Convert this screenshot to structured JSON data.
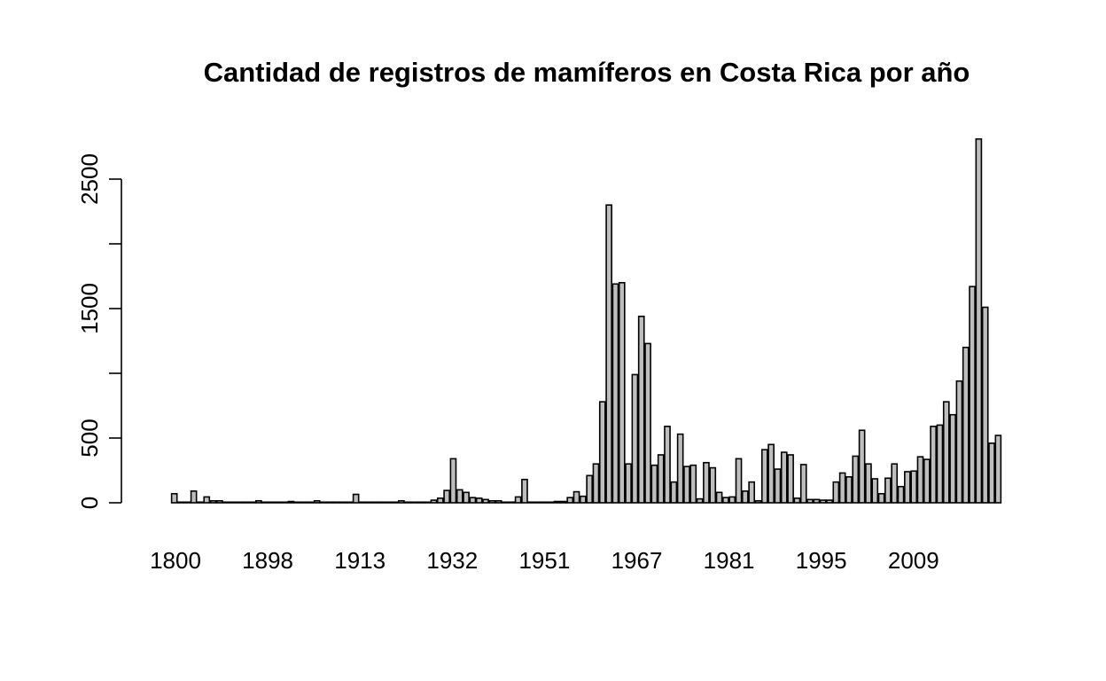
{
  "chart_data": {
    "type": "bar",
    "title": "Cantidad de registros de mamíferos en Costa Rica por año",
    "xlabel": "",
    "ylabel": "",
    "ylim": [
      0,
      2800
    ],
    "y_ticks": [
      0,
      500,
      1500,
      2500
    ],
    "x_tick_labels": [
      "1800",
      "1898",
      "1913",
      "1932",
      "1951",
      "1967",
      "1981",
      "1995",
      "2009"
    ],
    "bar_color": "#bebebe",
    "grid": false,
    "values": [
      70,
      5,
      5,
      90,
      5,
      45,
      15,
      15,
      5,
      5,
      5,
      5,
      5,
      15,
      5,
      5,
      5,
      5,
      10,
      5,
      5,
      5,
      15,
      5,
      5,
      5,
      5,
      5,
      65,
      5,
      5,
      5,
      5,
      5,
      5,
      15,
      5,
      5,
      5,
      5,
      20,
      35,
      95,
      340,
      100,
      80,
      40,
      35,
      25,
      15,
      15,
      5,
      5,
      45,
      180,
      5,
      5,
      5,
      5,
      10,
      10,
      40,
      85,
      50,
      210,
      300,
      780,
      2300,
      1690,
      1700,
      300,
      990,
      1440,
      1230,
      290,
      370,
      590,
      160,
      530,
      280,
      290,
      30,
      310,
      270,
      80,
      40,
      45,
      340,
      90,
      160,
      15,
      410,
      450,
      260,
      390,
      370,
      35,
      295,
      25,
      25,
      20,
      20,
      160,
      230,
      200,
      360,
      560,
      300,
      185,
      70,
      190,
      300,
      125,
      240,
      245,
      355,
      335,
      590,
      600,
      780,
      680,
      940,
      1200,
      1670,
      2810,
      1510,
      460,
      520
    ]
  }
}
